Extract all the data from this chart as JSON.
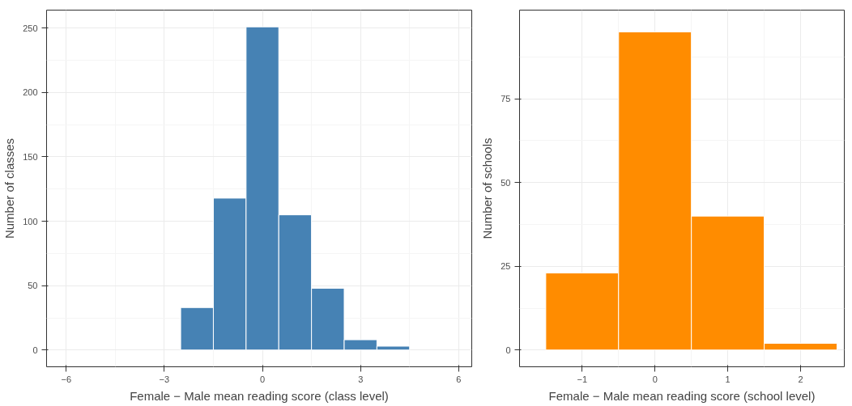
{
  "chart_data": [
    {
      "type": "histogram",
      "xlabel": "Female − Male mean reading score (class level)",
      "ylabel": "Number of classes",
      "bins": [
        -2.5,
        -1.5,
        -0.5,
        0.5,
        1.5,
        2.5,
        3.5,
        4.5
      ],
      "values": [
        33,
        118,
        251,
        105,
        48,
        8,
        3
      ],
      "color": "#4682b4",
      "xlim": [
        -6.6,
        6.4
      ],
      "ylim": [
        -13,
        264
      ],
      "xticks": [
        -6,
        -3,
        0,
        3,
        6
      ],
      "yticks": [
        0,
        50,
        100,
        150,
        200,
        250
      ],
      "grid": true
    },
    {
      "type": "histogram",
      "xlabel": "Female − Male mean reading score (school level)",
      "ylabel": "Number of schools",
      "bins": [
        -1.5,
        -0.5,
        0.5,
        1.5,
        2.5
      ],
      "values": [
        23,
        95,
        40,
        2
      ],
      "color": "#ff8c00",
      "xlim": [
        -1.86,
        2.6
      ],
      "ylim": [
        -5,
        101.5
      ],
      "xticks": [
        -1,
        0,
        1,
        2
      ],
      "yticks": [
        0,
        25,
        50,
        75
      ],
      "grid": true
    }
  ]
}
